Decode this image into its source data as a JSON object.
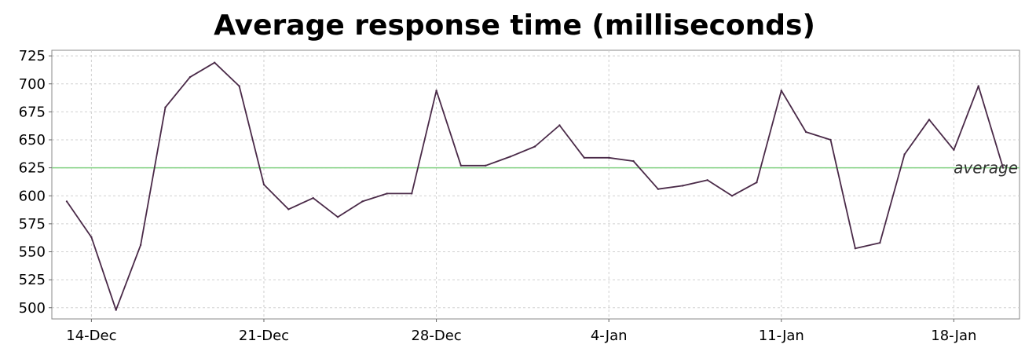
{
  "chart_data": {
    "type": "line",
    "title": "Average response time (milliseconds)",
    "xlabel": "",
    "ylabel": "",
    "ylim": [
      490,
      730
    ],
    "y_ticks": [
      500,
      525,
      550,
      575,
      600,
      625,
      650,
      675,
      700,
      725
    ],
    "x_ticks": [
      "14-Dec",
      "21-Dec",
      "28-Dec",
      "4-Jan",
      "11-Jan",
      "18-Jan"
    ],
    "x_tick_days": [
      1,
      8,
      15,
      22,
      29,
      36
    ],
    "grid": true,
    "colors": {
      "line": "#4a2a48",
      "reference": "#80d080",
      "grid": "#d0d0d0"
    },
    "series": [
      {
        "x": [
          0,
          1,
          2,
          3,
          4,
          5,
          6,
          7,
          8,
          9,
          10,
          11,
          12,
          13,
          14,
          15,
          16,
          17,
          18,
          19,
          20,
          21,
          22,
          23,
          24,
          25,
          26,
          27,
          28,
          29,
          30,
          31,
          32,
          33,
          34,
          35,
          36,
          37,
          38
        ],
        "values": [
          595,
          563,
          498,
          556,
          679,
          706,
          719,
          698,
          610,
          588,
          598,
          581,
          595,
          602,
          602,
          694,
          627,
          627,
          635,
          644,
          663,
          634,
          634,
          631,
          606,
          609,
          614,
          600,
          612,
          694,
          657,
          650,
          553,
          558,
          637,
          668,
          641,
          698,
          625
        ]
      }
    ],
    "reference_line": {
      "label": "average",
      "value": 625
    }
  }
}
